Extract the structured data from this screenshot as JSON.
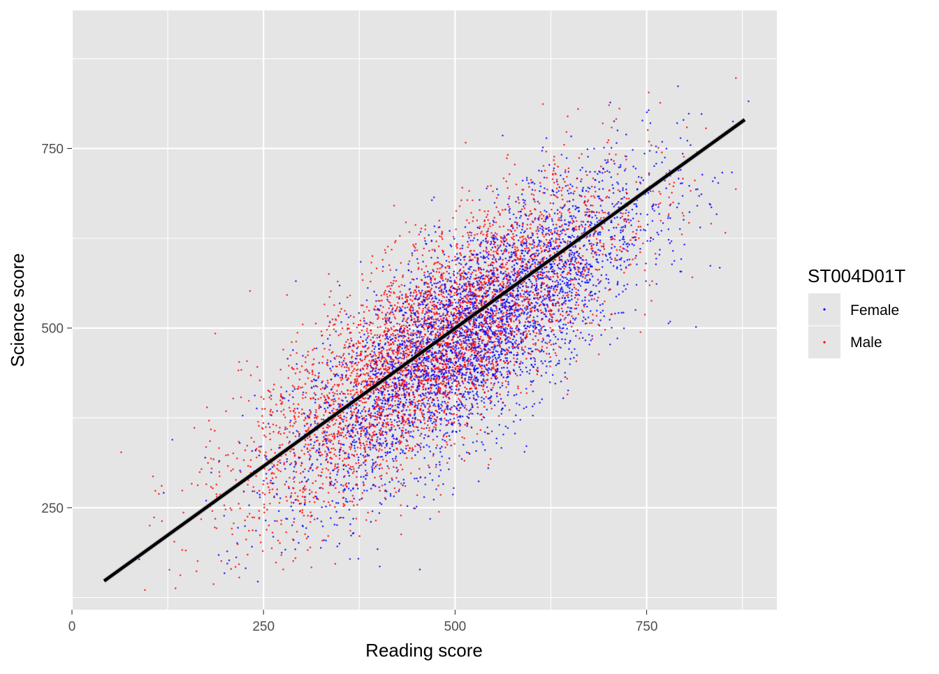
{
  "chart_data": {
    "type": "scatter",
    "xlabel": "Reading score",
    "ylabel": "Science score",
    "xlim": [
      0,
      920
    ],
    "ylim": [
      108,
      942
    ],
    "x_ticks": [
      0,
      250,
      500,
      750
    ],
    "y_ticks": [
      250,
      500,
      750
    ],
    "x_tick_labels": [
      "0",
      "250",
      "500",
      "750"
    ],
    "y_tick_labels": [
      "250",
      "500",
      "750"
    ],
    "grid": true,
    "legend": {
      "title": "ST004D01T",
      "position": "right",
      "entries": [
        {
          "label": "Female",
          "color": "#0000ff"
        },
        {
          "label": "Male",
          "color": "#ff0000"
        }
      ]
    },
    "series": [
      {
        "name": "Female",
        "color": "#0000ff",
        "n_points_approx": 4200,
        "cloud": {
          "x_mean": 520,
          "x_sd": 115,
          "y_mean": 490,
          "y_sd": 110,
          "correlation": 0.78
        }
      },
      {
        "name": "Male",
        "color": "#ff0000",
        "n_points_approx": 4200,
        "cloud": {
          "x_mean": 470,
          "x_sd": 120,
          "y_mean": 475,
          "y_sd": 112,
          "correlation": 0.78
        }
      }
    ],
    "regression_line": {
      "x": [
        42,
        878
      ],
      "y": [
        148,
        790
      ],
      "color": "#000000"
    },
    "background_color": "#e5e5e5",
    "grid_color": "#ffffff"
  }
}
